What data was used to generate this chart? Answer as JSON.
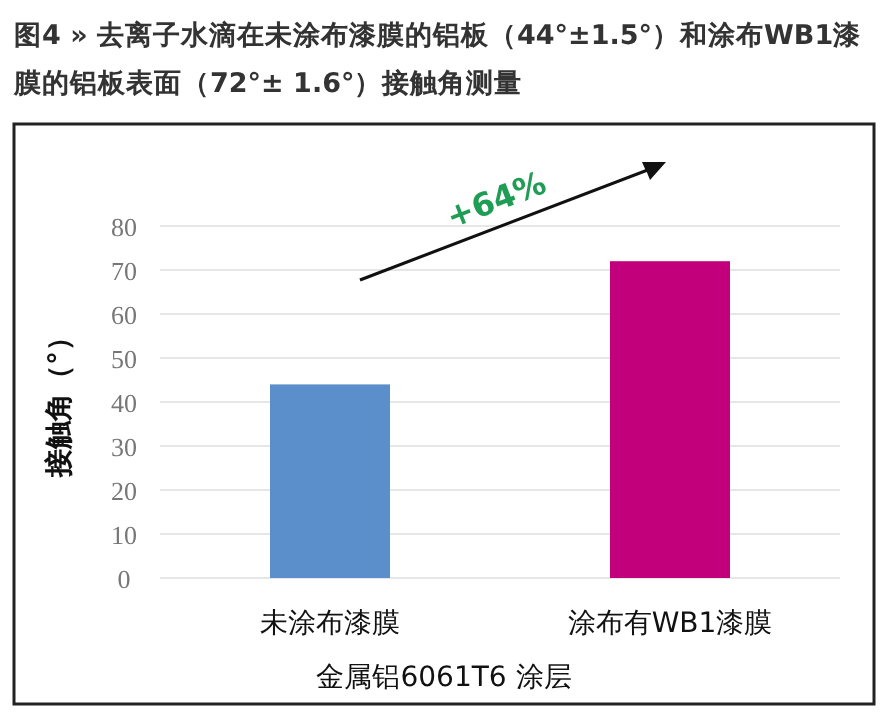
{
  "chart_data": {
    "type": "bar",
    "title": "图4 » 去离子水滴在未涂布漆膜的铝板（44°±1.5°）和涂布WB1漆膜的铝板表面（72°± 1.6°）接触角测量",
    "categories": [
      "未涂布漆膜",
      "涂布有WB1漆膜"
    ],
    "values": [
      44,
      72
    ],
    "colors": [
      "#5b8fcb",
      "#c2007c"
    ],
    "ylim": [
      0,
      80
    ],
    "yticks": [
      0,
      10,
      20,
      30,
      40,
      50,
      60,
      70,
      80
    ],
    "grid": "y",
    "ylabel": "接触角（°）",
    "xlabel": "金属铝6061T6 涂层",
    "annotations": [
      "+64%"
    ]
  }
}
